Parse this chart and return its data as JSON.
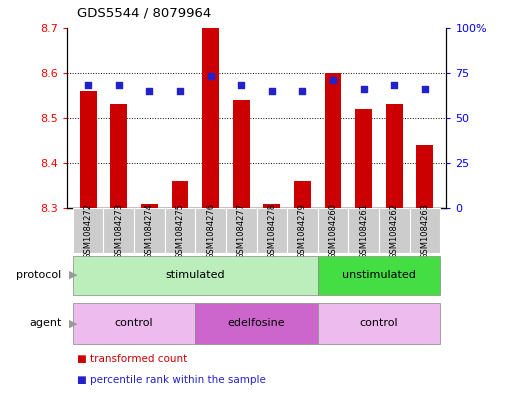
{
  "title": "GDS5544 / 8079964",
  "samples": [
    "GSM1084272",
    "GSM1084273",
    "GSM1084274",
    "GSM1084275",
    "GSM1084276",
    "GSM1084277",
    "GSM1084278",
    "GSM1084279",
    "GSM1084260",
    "GSM1084261",
    "GSM1084262",
    "GSM1084263"
  ],
  "transformed_count": [
    8.56,
    8.53,
    8.31,
    8.36,
    8.7,
    8.54,
    8.31,
    8.36,
    8.6,
    8.52,
    8.53,
    8.44
  ],
  "percentile_rank": [
    68,
    68,
    65,
    65,
    73,
    68,
    65,
    65,
    71,
    66,
    68,
    66
  ],
  "ylim_left": [
    8.3,
    8.7
  ],
  "ylim_right": [
    0,
    100
  ],
  "yticks_left": [
    8.3,
    8.4,
    8.5,
    8.6,
    8.7
  ],
  "yticks_right": [
    0,
    25,
    50,
    75,
    100
  ],
  "ytick_labels_right": [
    "0",
    "25",
    "50",
    "75",
    "100%"
  ],
  "bar_color": "#cc0000",
  "dot_color": "#2222cc",
  "protocol_groups": [
    {
      "label": "stimulated",
      "start": 0,
      "end": 8,
      "color": "#bbeebb"
    },
    {
      "label": "unstimulated",
      "start": 8,
      "end": 12,
      "color": "#44dd44"
    }
  ],
  "agent_groups": [
    {
      "label": "control",
      "start": 0,
      "end": 4,
      "color": "#eebbee"
    },
    {
      "label": "edelfosine",
      "start": 4,
      "end": 8,
      "color": "#cc66cc"
    },
    {
      "label": "control",
      "start": 8,
      "end": 12,
      "color": "#eebbee"
    }
  ],
  "legend_items": [
    {
      "label": "transformed count",
      "color": "#cc0000"
    },
    {
      "label": "percentile rank within the sample",
      "color": "#2222cc"
    }
  ],
  "protocol_label": "protocol",
  "agent_label": "agent"
}
